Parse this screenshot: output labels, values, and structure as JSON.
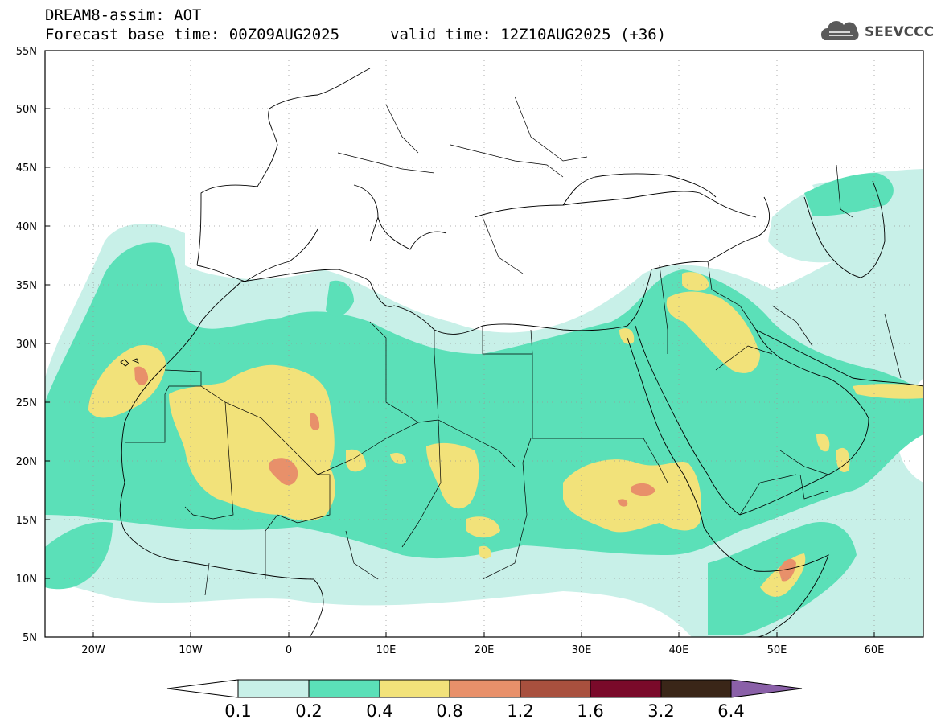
{
  "title": {
    "line1": "DREAM8-assim: AOT",
    "line2": "Forecast base time: 00Z09AUG2025",
    "valid": "valid time: 12Z10AUG2025 (+36)"
  },
  "logo": {
    "text": "SEEVCCC",
    "icon": "cloud-icon"
  },
  "map": {
    "lon_range": [
      -25,
      65
    ],
    "lat_range": [
      5,
      55
    ],
    "lat_labels": [
      "5N",
      "10N",
      "15N",
      "20N",
      "25N",
      "30N",
      "35N",
      "40N",
      "45N",
      "50N",
      "55N"
    ],
    "lon_labels": [
      "20W",
      "10W",
      "0",
      "10E",
      "20E",
      "30E",
      "40E",
      "50E",
      "60E"
    ],
    "gridlines": true
  },
  "colorbar": {
    "labels": [
      "0.1",
      "0.2",
      "0.4",
      "0.8",
      "1.2",
      "1.6",
      "3.2",
      "6.4"
    ],
    "colors": [
      "#c8f0e8",
      "#5be0b8",
      "#f2e27a",
      "#e8906a",
      "#a8503e",
      "#7a0a2a",
      "#3a2618",
      "#8a60a8"
    ]
  }
}
